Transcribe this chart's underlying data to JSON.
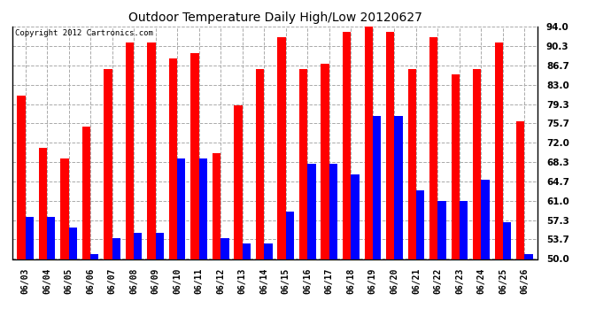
{
  "title": "Outdoor Temperature Daily High/Low 20120627",
  "copyright": "Copyright 2012 Cartronics.com",
  "dates": [
    "06/03",
    "06/04",
    "06/05",
    "06/06",
    "06/07",
    "06/08",
    "06/09",
    "06/10",
    "06/11",
    "06/12",
    "06/13",
    "06/14",
    "06/15",
    "06/16",
    "06/17",
    "06/18",
    "06/19",
    "06/20",
    "06/21",
    "06/22",
    "06/23",
    "06/24",
    "06/25",
    "06/26"
  ],
  "highs": [
    81,
    71,
    69,
    75,
    86,
    91,
    91,
    88,
    89,
    70,
    79,
    86,
    92,
    86,
    87,
    93,
    94,
    93,
    86,
    92,
    85,
    86,
    91,
    76
  ],
  "lows": [
    58,
    58,
    56,
    51,
    54,
    55,
    55,
    69,
    69,
    54,
    53,
    53,
    59,
    68,
    68,
    66,
    77,
    77,
    63,
    61,
    61,
    65,
    57,
    51
  ],
  "high_color": "#ff0000",
  "low_color": "#0000ff",
  "bg_color": "#ffffff",
  "grid_color": "#aaaaaa",
  "yticks": [
    50.0,
    53.7,
    57.3,
    61.0,
    64.7,
    68.3,
    72.0,
    75.7,
    79.3,
    83.0,
    86.7,
    90.3,
    94.0
  ],
  "ymin": 50.0,
  "ymax": 94.0,
  "bar_width": 0.38,
  "figwidth": 6.9,
  "figheight": 3.75,
  "dpi": 100
}
